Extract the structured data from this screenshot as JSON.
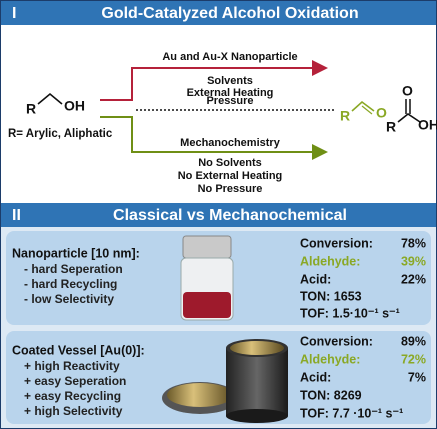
{
  "section1": {
    "numeral": "I",
    "title": "Gold-Catalyzed Alcohol Oxidation"
  },
  "scheme": {
    "reactant_r": "R",
    "reactant_oh": "OH",
    "r_definition": "R= Arylic, Aliphatic",
    "top_conditions": [
      "Au and Au-X Nanoparticle",
      "Solvents",
      "External Heating",
      "Pressure"
    ],
    "bottom_conditions": [
      "Mechanochemistry",
      "No Solvents",
      "No External Heating",
      "No Pressure"
    ],
    "aldehyde_r": "R",
    "aldehyde_o": "O",
    "acid_r": "R",
    "acid_o": "O",
    "acid_oh": "OH"
  },
  "section2": {
    "numeral": "II",
    "title": "Classical vs Mechanochemical"
  },
  "cards": [
    {
      "title": "Nanoparticle [10 nm]:",
      "items": [
        "- hard Seperation",
        "- hard Recycling",
        "- low Selectivity"
      ],
      "stats": [
        {
          "label": "Conversion:",
          "value": "78%"
        },
        {
          "label": "Aldehyde:",
          "value": "39%"
        },
        {
          "label": "Acid:",
          "value": "22%"
        }
      ],
      "ton": "TON: 1653",
      "tof": "TOF: 1.5·10⁻¹ s⁻¹"
    },
    {
      "title": "Coated Vessel [Au(0)]:",
      "items": [
        "+ high Reactivity",
        "+ easy Seperation",
        "+ easy Recycling",
        "+ high Selectivity"
      ],
      "stats": [
        {
          "label": "Conversion:",
          "value": "89%"
        },
        {
          "label": "Aldehyde:",
          "value": "72%"
        },
        {
          "label": "Acid:",
          "value": "7%"
        }
      ],
      "ton": "TON: 8269",
      "tof": "TOF: 7.7 ·10⁻¹ s⁻¹"
    }
  ]
}
